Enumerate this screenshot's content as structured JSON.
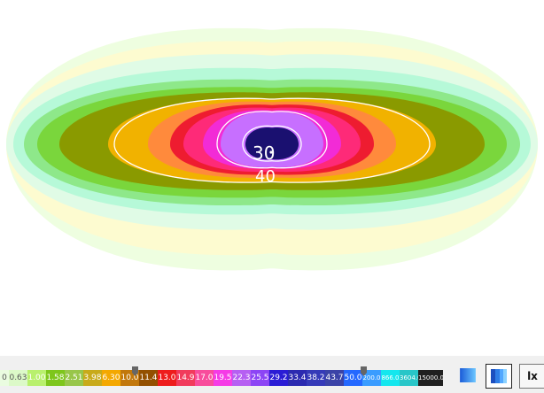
{
  "plot": {
    "contour_labels": [
      "30",
      "40"
    ],
    "band_colors_outer_to_inner": [
      "#eefee0",
      "#fdfbd0",
      "#e0fbe6",
      "#b6f9d8",
      "#8ee88a",
      "#7ad63c",
      "#8a9a00",
      "#f1b200",
      "#ff8a3c",
      "#ee1c30",
      "#fe2a78",
      "#f22bd6",
      "#c76fff",
      "#1a1070"
    ],
    "line_color": "#ffffff"
  },
  "scale": {
    "labels": [
      "0",
      "0.63",
      "1.00",
      "1.58",
      "2.51",
      "3.98",
      "6.30",
      "10.0",
      "11.4",
      "13.0",
      "14.9",
      "17.0",
      "19.5",
      "22.3",
      "25.5",
      "29.2",
      "33.4",
      "38.2",
      "43.7",
      "50.0",
      "200.0",
      "866.0",
      "3604.0",
      "15000.0"
    ],
    "colors": [
      "#eafce0",
      "#dcf9c8",
      "#b9f06d",
      "#7ec61c",
      "#98c64a",
      "#c8aa1a",
      "#f4a800",
      "#c2780c",
      "#935000",
      "#ee1c1c",
      "#f13b5c",
      "#f84c9c",
      "#f53be6",
      "#b65ff2",
      "#8c45f5",
      "#2a1cd5",
      "#2b2ab0",
      "#353ab8",
      "#3b43a7",
      "#2468ff",
      "#3a9cff",
      "#14e7ee",
      "#28c6c8",
      "#202020"
    ],
    "text_colors": [
      "#555555",
      "#555555",
      "#ffffff",
      "#ffffff",
      "#ffffff",
      "#ffffff",
      "#ffffff",
      "#ffffff",
      "#ffffff",
      "#ffffff",
      "#ffffff",
      "#ffffff",
      "#ffffff",
      "#ffffff",
      "#ffffff",
      "#ffffff",
      "#ffffff",
      "#ffffff",
      "#ffffff",
      "#ffffff",
      "#ffffff",
      "#ffffff",
      "#ffffff",
      "#ffffff"
    ]
  },
  "sliders": {
    "left_value": "10.0",
    "right_value": "50.0"
  },
  "toolbar": {
    "gradient_icon": "gradient-icon",
    "bands_icon": "bands-icon",
    "lx_label": "lx"
  }
}
